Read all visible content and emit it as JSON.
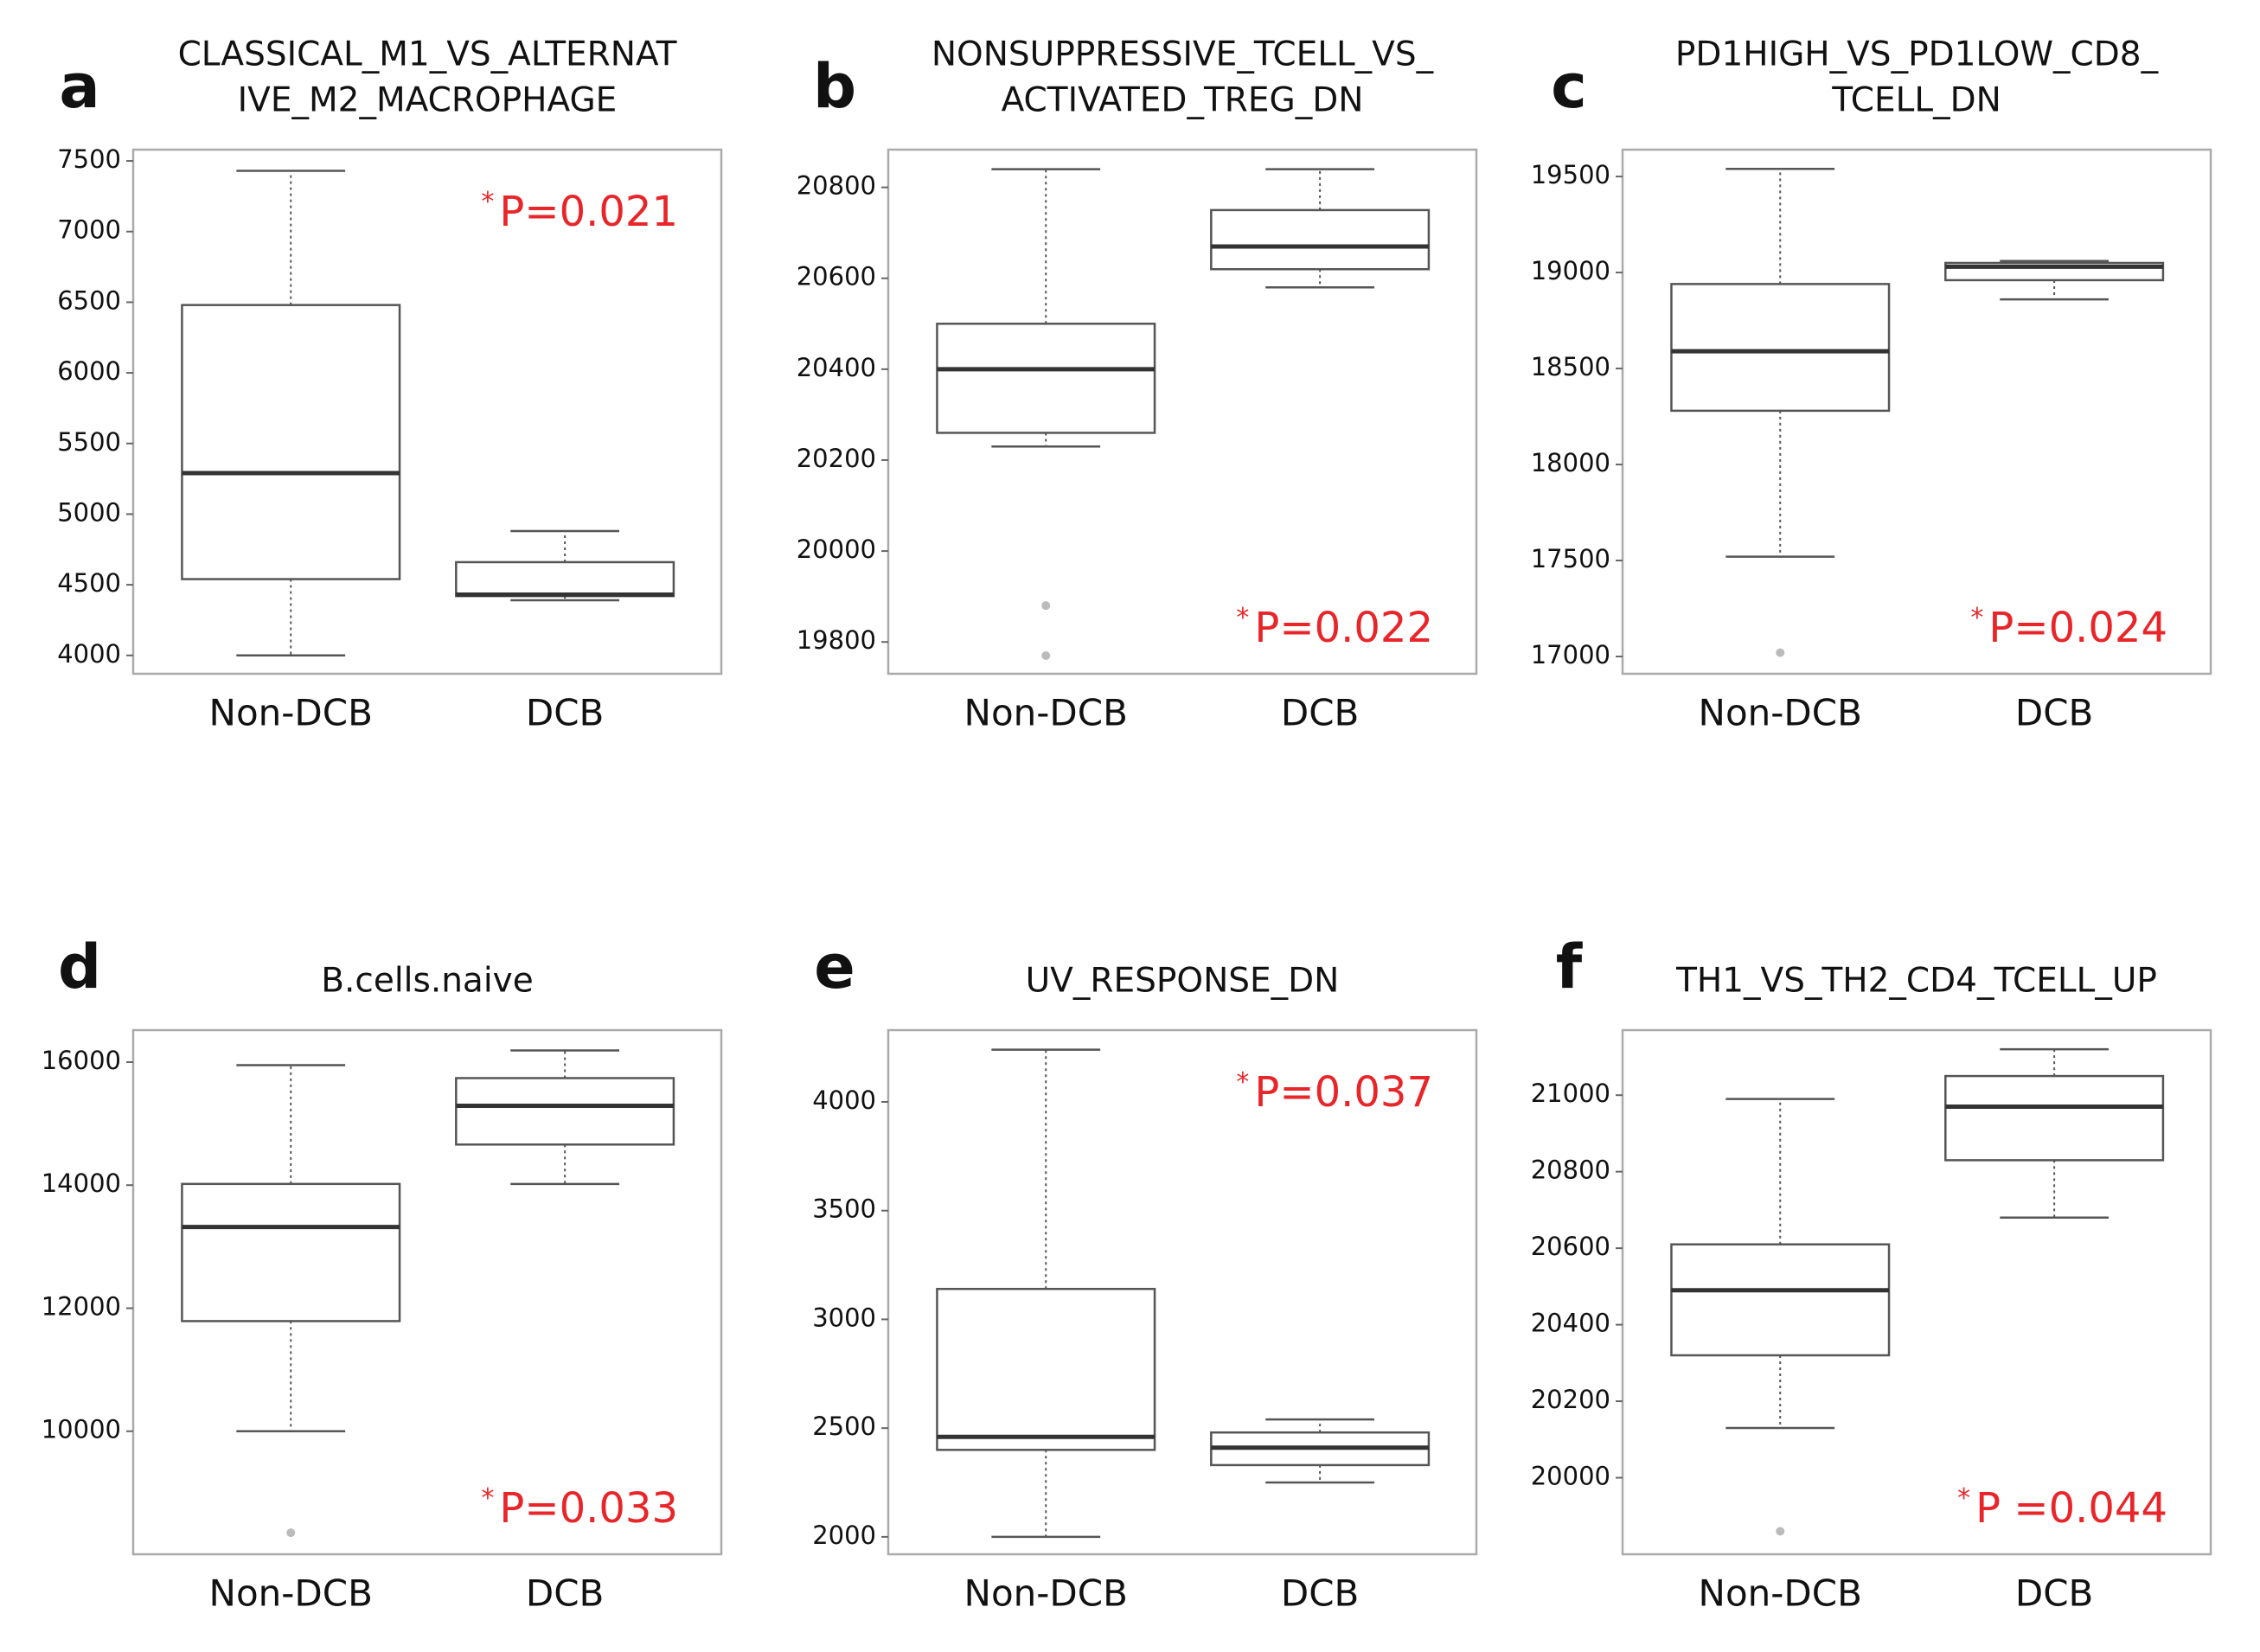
{
  "chart_data": [
    {
      "type": "box",
      "panel": "a",
      "title": [
        "CLASSICAL_M1_VS_ALTERNAT",
        "IVE_M2_MACROPHAGE"
      ],
      "categories": [
        "Non-DCB",
        "DCB"
      ],
      "boxes": [
        {
          "whislo": 4000,
          "q1": 4540,
          "med": 5290,
          "q3": 6480,
          "whishi": 7430,
          "fliers": []
        },
        {
          "whislo": 4390,
          "q1": 4420,
          "med": 4430,
          "q3": 4660,
          "whishi": 4880,
          "fliers": []
        }
      ],
      "ylim": [
        3870,
        7580
      ],
      "yticks": [
        4000,
        4500,
        5000,
        5500,
        6000,
        6500,
        7000,
        7500
      ],
      "annotation_star": "*",
      "annotation": "P=0.021",
      "annotation_corner": "top-right"
    },
    {
      "type": "box",
      "panel": "b",
      "title": [
        "NONSUPPRESSIVE_TCELL_VS_",
        "ACTIVATED_TREG_DN"
      ],
      "categories": [
        "Non-DCB",
        "DCB"
      ],
      "boxes": [
        {
          "whislo": 20230,
          "q1": 20260,
          "med": 20400,
          "q3": 20500,
          "whishi": 20840,
          "fliers": [
            19880,
            19770
          ]
        },
        {
          "whislo": 20580,
          "q1": 20620,
          "med": 20670,
          "q3": 20750,
          "whishi": 20840,
          "fliers": []
        }
      ],
      "ylim": [
        19730,
        20883
      ],
      "yticks": [
        19800,
        20000,
        20200,
        20400,
        20600,
        20800
      ],
      "annotation_star": "*",
      "annotation": "P=0.022",
      "annotation_corner": "bottom-right"
    },
    {
      "type": "box",
      "panel": "c",
      "title": [
        "PD1HIGH_VS_PD1LOW_CD8_",
        "TCELL_DN"
      ],
      "categories": [
        "Non-DCB",
        "DCB"
      ],
      "boxes": [
        {
          "whislo": 17520,
          "q1": 18280,
          "med": 18590,
          "q3": 18940,
          "whishi": 19540,
          "fliers": [
            17020
          ]
        },
        {
          "whislo": 18860,
          "q1": 18960,
          "med": 19030,
          "q3": 19050,
          "whishi": 19060,
          "fliers": []
        }
      ],
      "ylim": [
        16910,
        19640
      ],
      "yticks": [
        17000,
        17500,
        18000,
        18500,
        19000,
        19500
      ],
      "annotation_star": "*",
      "annotation": "P=0.024",
      "annotation_corner": "bottom-right"
    },
    {
      "type": "box",
      "panel": "d",
      "title": [
        "B.cells.naive"
      ],
      "categories": [
        "Non-DCB",
        "DCB"
      ],
      "boxes": [
        {
          "whislo": 10000,
          "q1": 11790,
          "med": 13320,
          "q3": 14020,
          "whishi": 15950,
          "fliers": [
            8350
          ]
        },
        {
          "whislo": 14020,
          "q1": 14660,
          "med": 15290,
          "q3": 15740,
          "whishi": 16190,
          "fliers": []
        }
      ],
      "ylim": [
        8000,
        16520
      ],
      "yticks": [
        10000,
        12000,
        14000,
        16000
      ],
      "annotation_star": "*",
      "annotation": "P=0.033",
      "annotation_corner": "bottom-right"
    },
    {
      "type": "box",
      "panel": "e",
      "title": [
        "UV_RESPONSE_DN"
      ],
      "categories": [
        "Non-DCB",
        "DCB"
      ],
      "boxes": [
        {
          "whislo": 2000,
          "q1": 2400,
          "med": 2460,
          "q3": 3140,
          "whishi": 4240,
          "fliers": []
        },
        {
          "whislo": 2250,
          "q1": 2330,
          "med": 2410,
          "q3": 2480,
          "whishi": 2540,
          "fliers": []
        }
      ],
      "ylim": [
        1920,
        4330
      ],
      "yticks": [
        2000,
        2500,
        3000,
        3500,
        4000
      ],
      "annotation_star": "*",
      "annotation": "P=0.037",
      "annotation_corner": "top-right"
    },
    {
      "type": "box",
      "panel": "f",
      "title": [
        "TH1_VS_TH2_CD4_TCELL_UP"
      ],
      "categories": [
        "Non-DCB",
        "DCB"
      ],
      "boxes": [
        {
          "whislo": 20130,
          "q1": 20320,
          "med": 20490,
          "q3": 20610,
          "whishi": 20990,
          "fliers": [
            19860
          ]
        },
        {
          "whislo": 20680,
          "q1": 20830,
          "med": 20970,
          "q3": 21050,
          "whishi": 21120,
          "fliers": []
        }
      ],
      "ylim": [
        19800,
        21170
      ],
      "yticks": [
        20000,
        20200,
        20400,
        20600,
        20800,
        21000
      ],
      "annotation_star": "*",
      "annotation": "P =0.044",
      "annotation_corner": "bottom-right"
    }
  ]
}
